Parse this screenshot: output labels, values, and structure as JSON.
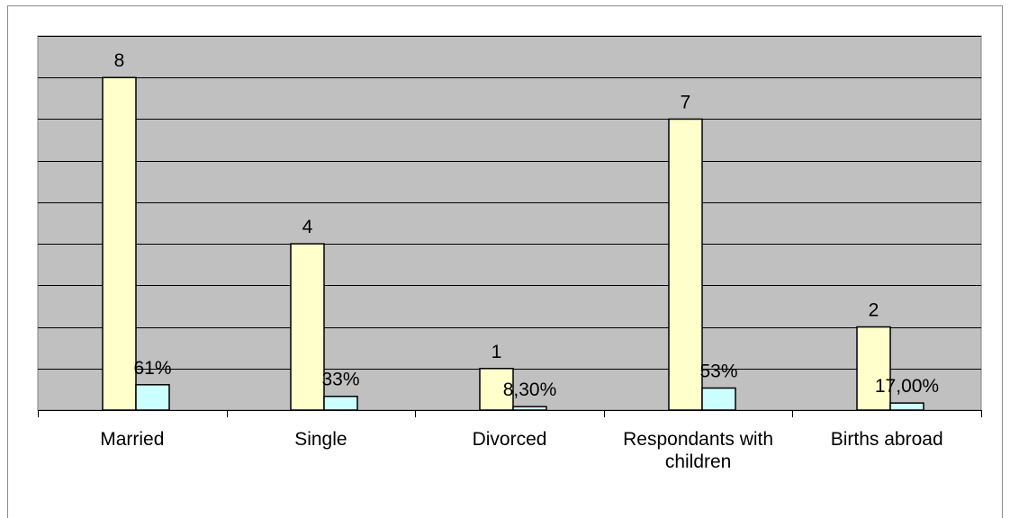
{
  "chart_data": {
    "type": "bar",
    "title": "",
    "xlabel": "",
    "ylabel": "",
    "grid": true,
    "legend": "none",
    "ylim": [
      0,
      9
    ],
    "categories": [
      [
        "Married"
      ],
      [
        "Single"
      ],
      [
        "Divorced"
      ],
      [
        "Respondants with",
        "children"
      ],
      [
        "Births abroad"
      ]
    ],
    "series": [
      {
        "color": "#FFFFCC",
        "values": [
          8,
          4,
          1,
          7,
          2
        ],
        "labels": [
          "8",
          "4",
          "1",
          "7",
          "2"
        ]
      },
      {
        "color": "#CCFFFF",
        "values": [
          0.61,
          0.33,
          0.083,
          0.53,
          0.17
        ],
        "labels": [
          "61%",
          "33%",
          "8,30%",
          "53%",
          "17,00%"
        ]
      }
    ],
    "colors": {
      "plot_background": "#C0C0C0",
      "gridline": "#000000",
      "bar_border": "#000000"
    }
  }
}
